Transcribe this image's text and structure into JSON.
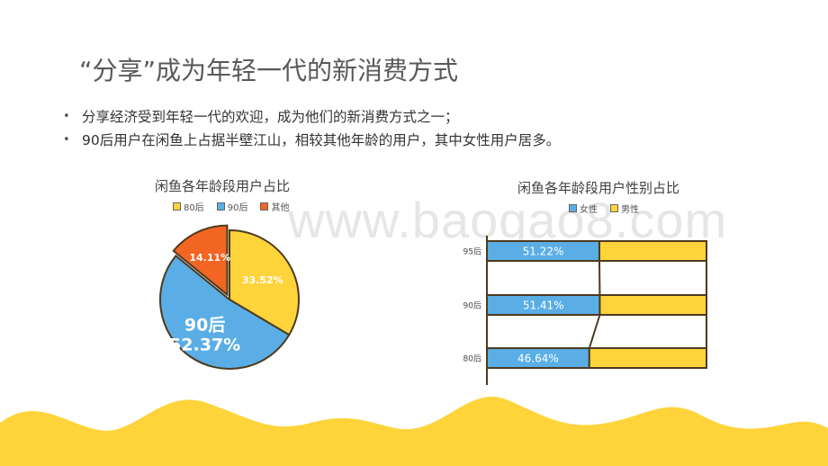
{
  "slide": {
    "title": "“分享”成为年轻一代的新消费方式",
    "bullets": [
      "分享经济受到年轻一代的欢迎，成为他们的新消费方式之一；",
      "90后用户在闲鱼上占据半壁江山，相较其他年龄的用户，其中女性用户居多。"
    ],
    "watermark": "www.baogao8.com"
  },
  "chart_data": [
    {
      "type": "pie",
      "title": "闲鱼各年龄段用户占比",
      "legend_position": "top",
      "slices": [
        {
          "name": "80后",
          "value": 33.52,
          "label": "33.52%",
          "color": "#ffd43b"
        },
        {
          "name": "90后",
          "value": 52.37,
          "label": "90后\n52.37%",
          "color": "#5aaee5"
        },
        {
          "name": "其他",
          "value": 14.11,
          "label": "14.11%",
          "color": "#f26522"
        }
      ]
    },
    {
      "type": "bar",
      "orientation": "horizontal",
      "stacked_percent": true,
      "title": "闲鱼各年龄段用户性别占比",
      "legend_position": "top",
      "categories": [
        "95后",
        "90后",
        "80后"
      ],
      "series": [
        {
          "name": "女性",
          "values": [
            51.22,
            51.41,
            46.64
          ],
          "labels": [
            "51.22%",
            "51.41%",
            "46.64%"
          ],
          "color": "#5aaee5"
        },
        {
          "name": "男性",
          "values": [
            48.78,
            48.59,
            53.36
          ],
          "color": "#ffd43b"
        }
      ],
      "xlim": [
        0,
        100
      ]
    }
  ]
}
